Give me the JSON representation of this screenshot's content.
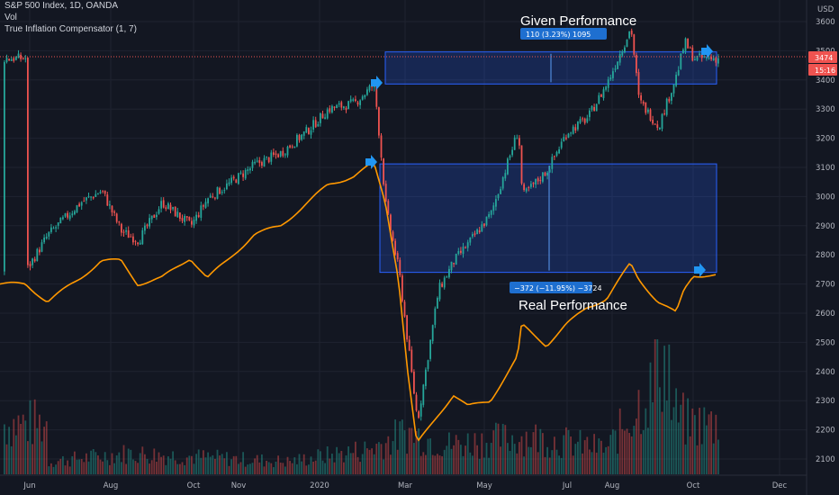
{
  "header": {
    "symbol_line": "S&P 500 Index, 1D, OANDA",
    "indicator_1": "Vol",
    "indicator_2": "True Inflation Compensator (1, 7)"
  },
  "price_axis": {
    "currency": "USD",
    "current_price": "3474",
    "countdown": "15:16"
  },
  "colors": {
    "background": "#131722",
    "up": "#26a69a",
    "down": "#ef5350",
    "compensator_line": "#ff9800",
    "range_box": "#2962ff",
    "badge": "#1e6fd0",
    "arrow": "#2196f3"
  },
  "annotations": {
    "given_label": "Given Performance",
    "given_measure": "110 (3.23%) 1095",
    "real_label": "Real Performance",
    "real_measure": "−372 (−11.95%) −3724"
  },
  "chart_data": {
    "type": "line",
    "title": "",
    "xlabel": "",
    "ylabel": "",
    "x_ticks": [
      "Jun",
      "Aug",
      "Oct",
      "Nov",
      "2020",
      "Mar",
      "May",
      "Jul",
      "Aug",
      "Oct",
      "Dec"
    ],
    "y_ticks": [
      3600,
      3500,
      3400,
      3300,
      3200,
      3100,
      3000,
      2900,
      2800,
      2700,
      2600,
      2500,
      2400,
      2300,
      2200,
      2100
    ],
    "ylim": [
      2080,
      3640
    ],
    "grid": true,
    "legend": "none",
    "series": [
      {
        "name": "S&P 500 Index",
        "style": "candlestick",
        "x": [
          "2019-05-29",
          "2019-06-15",
          "2019-07-10",
          "2019-07-26",
          "2019-08-10",
          "2019-08-23",
          "2019-09-10",
          "2019-10-02",
          "2019-10-15",
          "2019-10-30",
          "2019-11-20",
          "2019-12-10",
          "2019-12-31",
          "2020-01-15",
          "2020-02-04",
          "2020-02-19",
          "2020-02-28",
          "2020-03-09",
          "2020-03-16",
          "2020-03-23",
          "2020-04-08",
          "2020-04-20",
          "2020-05-01",
          "2020-05-18",
          "2020-06-08",
          "2020-06-11",
          "2020-06-30",
          "2020-07-15",
          "2020-07-31",
          "2020-08-15",
          "2020-09-02",
          "2020-09-08",
          "2020-09-23",
          "2020-10-07",
          "2020-10-13",
          "2020-10-20"
        ],
        "y": [
          2745,
          2870,
          2980,
          3020,
          2880,
          2850,
          2980,
          2900,
          2995,
          3040,
          3110,
          3150,
          3230,
          3300,
          3320,
          3386,
          2960,
          2740,
          2480,
          2230,
          2680,
          2780,
          2840,
          2940,
          3230,
          3000,
          3090,
          3220,
          3270,
          3390,
          3580,
          3330,
          3240,
          3420,
          3530,
          3474
        ]
      },
      {
        "name": "True Inflation Compensator (1, 7)",
        "style": "line",
        "x": [
          "2019-05-29",
          "2019-06-15",
          "2019-07-10",
          "2019-07-26",
          "2019-08-10",
          "2019-08-23",
          "2019-09-10",
          "2019-10-02",
          "2019-10-15",
          "2019-10-30",
          "2019-11-20",
          "2019-12-10",
          "2019-12-31",
          "2020-01-15",
          "2020-02-04",
          "2020-02-19",
          "2020-02-28",
          "2020-03-09",
          "2020-03-16",
          "2020-03-23",
          "2020-04-08",
          "2020-04-20",
          "2020-05-01",
          "2020-05-18",
          "2020-06-08",
          "2020-06-11",
          "2020-06-30",
          "2020-07-15",
          "2020-07-31",
          "2020-08-15",
          "2020-09-02",
          "2020-09-08",
          "2020-09-23",
          "2020-10-07",
          "2020-10-13",
          "2020-10-20"
        ],
        "y": [
          2700,
          2640,
          2720,
          2780,
          2780,
          2700,
          2720,
          2790,
          2720,
          2780,
          2870,
          2900,
          2980,
          3040,
          3070,
          3115,
          2980,
          2720,
          2400,
          2150,
          2250,
          2320,
          2280,
          2300,
          2450,
          2560,
          2490,
          2560,
          2620,
          2650,
          2770,
          2720,
          2640,
          2600,
          2680,
          2730
        ]
      },
      {
        "name": "Vol",
        "style": "volume_bars",
        "x": [
          "2019-06",
          "2019-08",
          "2019-10",
          "2019-12",
          "2020-02",
          "2020-03",
          "2020-04",
          "2020-06",
          "2020-08",
          "2020-09",
          "2020-10"
        ],
        "values": [
          0.15,
          0.25,
          0.2,
          0.15,
          0.3,
          0.5,
          0.35,
          0.45,
          0.3,
          1.0,
          0.6
        ]
      }
    ],
    "ranges": [
      {
        "label": "Given Performance",
        "from": 3386,
        "to": 3496,
        "change": "110 (3.23%) 1095"
      },
      {
        "label": "Real Performance",
        "from": 3112,
        "to": 2740,
        "change": "−372 (−11.95%) −3724"
      }
    ]
  }
}
